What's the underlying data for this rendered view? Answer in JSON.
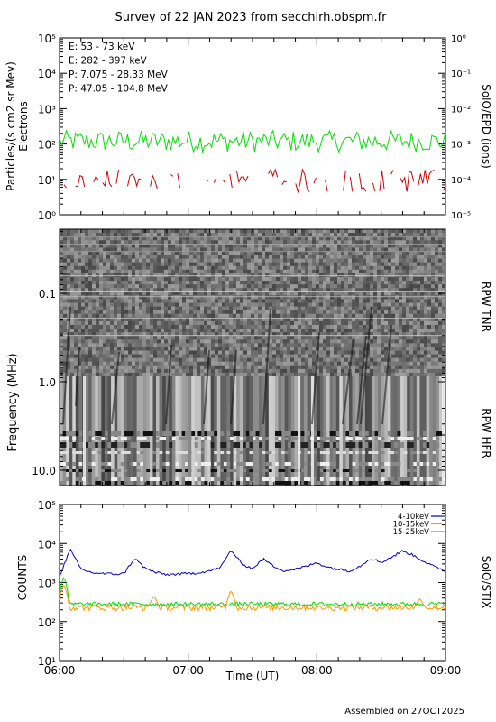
{
  "title": "Survey of 22 JAN 2023 from secchirh.obspm.fr",
  "footer": "Assembled on 27OCT2025",
  "colors": {
    "green": "#00e000",
    "red": "#d00000",
    "black": "#000000",
    "blue": "#0000cc",
    "orange": "#ff9900"
  },
  "chart_data": [
    {
      "type": "line",
      "ylabel": "Particles/(s cm2 sr Mev)",
      "ylabel2": "Electrons",
      "right_label": "SolO/EPD (ions)",
      "yscale": "log",
      "ylim": [
        1,
        100000
      ],
      "y_ticks": [
        "10⁰",
        "10¹",
        "10²",
        "10³",
        "10⁴",
        "10⁵"
      ],
      "y2_ticks": [
        "10⁻⁵",
        "10⁻⁴",
        "10⁻³",
        "10⁻²",
        "10⁻¹",
        "10⁰"
      ],
      "xlim": [
        "06:00",
        "09:00"
      ],
      "legend": [
        {
          "name": "E: 53 - 73 keV",
          "color": "#00e000"
        },
        {
          "name": "E: 282 - 397 keV",
          "color": "#d00000"
        },
        {
          "name": "P: 7.075 - 28.33 MeV",
          "color": "#000000"
        },
        {
          "name": "P: 47.05 - 104.8 MeV",
          "color": "#0000cc"
        }
      ],
      "legend_position": "top-left",
      "series": [
        {
          "name": "E: 53 - 73 keV",
          "level": 120,
          "spread": 2.0
        },
        {
          "name": "E: 282 - 397 keV",
          "level": 7,
          "spread": 2.2,
          "sparse": true
        }
      ]
    },
    {
      "type": "heatmap",
      "ylabel": "Frequency (MHz)",
      "y_ticks": [
        "0.1",
        "1.0",
        "10.0"
      ],
      "yscale": "log",
      "ylim_inverted": [
        0.02,
        13
      ],
      "right_labels": [
        "RPW TNR",
        "RPW HFR"
      ],
      "colormap": "grayscale"
    },
    {
      "type": "line",
      "ylabel": "COUNTS",
      "right_label": "SolO/STIX",
      "yscale": "log",
      "ylim": [
        10,
        100000
      ],
      "y_ticks": [
        "10¹",
        "10²",
        "10³",
        "10⁴",
        "10⁵"
      ],
      "x_ticks": [
        "06:00",
        "07:00",
        "08:00",
        "09:00"
      ],
      "xlabel": "Time (UT)",
      "legend": [
        {
          "name": "4-10keV",
          "color": "#0000cc"
        },
        {
          "name": "10-15keV",
          "color": "#ff9900"
        },
        {
          "name": "15-25keV",
          "color": "#00e000"
        }
      ],
      "legend_position": "top-right",
      "series": [
        {
          "name": "4-10keV",
          "x_min": [
            0,
            5,
            10,
            15,
            20,
            25,
            30,
            35,
            40,
            45,
            50,
            55,
            60,
            65,
            70,
            75,
            80,
            85,
            90,
            95,
            100,
            105,
            110,
            115,
            120,
            125,
            130,
            135,
            140,
            145,
            150,
            155,
            160,
            165,
            170,
            175,
            180
          ],
          "values": [
            1500,
            7000,
            2200,
            1800,
            1700,
            1650,
            1700,
            4200,
            2300,
            1800,
            1600,
            1650,
            1700,
            1800,
            2000,
            2400,
            6800,
            3000,
            2300,
            4000,
            2600,
            2000,
            2200,
            2600,
            3200,
            2500,
            2200,
            2000,
            2600,
            4200,
            3300,
            4500,
            6500,
            5000,
            3500,
            2500,
            2000
          ]
        },
        {
          "name": "10-15keV",
          "level": 230,
          "spike_at_min": [
            2,
            44,
            80,
            168
          ],
          "spike_values": [
            900,
            450,
            620,
            380
          ]
        },
        {
          "name": "15-25keV",
          "level": 280,
          "spike_at_min": [
            2
          ],
          "spike_values": [
            1400
          ]
        }
      ]
    }
  ]
}
